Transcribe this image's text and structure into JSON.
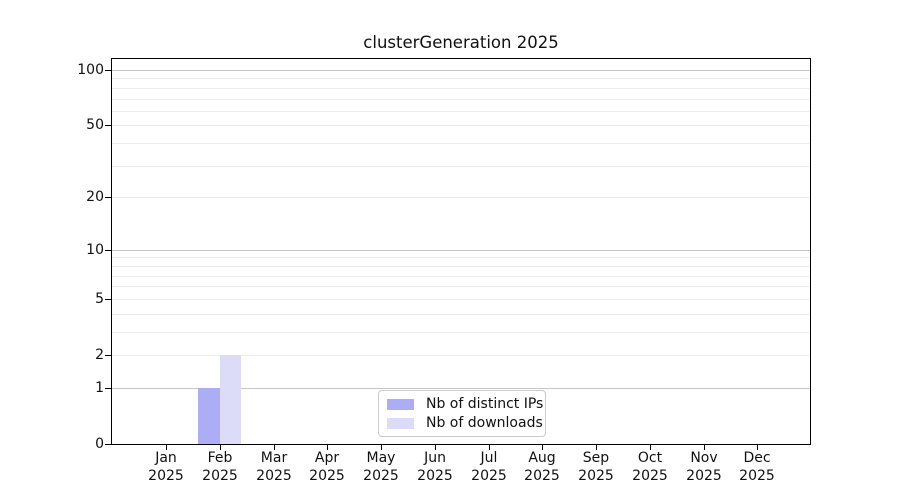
{
  "chart_data": {
    "type": "bar",
    "title": "clusterGeneration 2025",
    "xlabel": "",
    "ylabel": "",
    "year": "2025",
    "categories": [
      "Jan",
      "Feb",
      "Mar",
      "Apr",
      "May",
      "Jun",
      "Jul",
      "Aug",
      "Sep",
      "Oct",
      "Nov",
      "Dec"
    ],
    "series": [
      {
        "name": "Nb of distinct IPs",
        "color": "#adadf6",
        "values": [
          0,
          1,
          0,
          0,
          0,
          0,
          0,
          0,
          0,
          0,
          0,
          0
        ]
      },
      {
        "name": "Nb of downloads",
        "color": "#dcdcf9",
        "values": [
          0,
          2,
          0,
          0,
          0,
          0,
          0,
          0,
          0,
          0,
          0,
          0
        ]
      }
    ],
    "y_axis": {
      "scale": "log1p",
      "tick_values": [
        0,
        1,
        2,
        5,
        10,
        20,
        50,
        100
      ],
      "tick_labels": [
        "0",
        "1",
        "2",
        "5",
        "10",
        "20",
        "50",
        "100"
      ],
      "major_gridlines": [
        1,
        10,
        100
      ],
      "minor_gridlines": [
        2,
        3,
        4,
        5,
        6,
        7,
        8,
        9,
        20,
        30,
        40,
        50,
        60,
        70,
        80,
        90
      ],
      "ylim": [
        0,
        115
      ]
    },
    "legend_position": "lower center",
    "grid": true
  },
  "colors": {
    "background": "#ffffff",
    "axis": "#000000",
    "grid_major": "#c6c6c6",
    "grid_minor": "#ececec",
    "legend_border": "#cccccc",
    "text": "#111111"
  }
}
